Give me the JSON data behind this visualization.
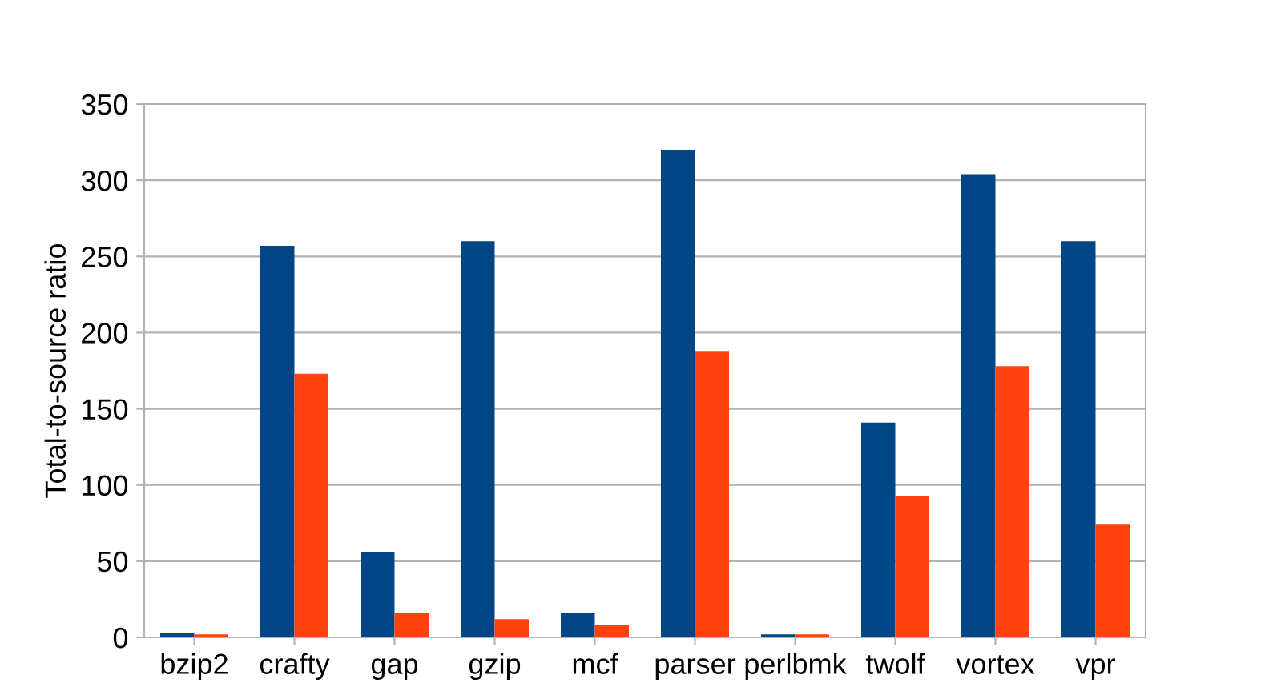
{
  "chart_data": {
    "type": "bar",
    "ylabel": "Total-to-source ratio",
    "categories": [
      "bzip2",
      "crafty",
      "gap",
      "gzip",
      "mcf",
      "parser",
      "perlbmk",
      "twolf",
      "vortex",
      "vpr"
    ],
    "series": [
      {
        "color": "#004586",
        "values": [
          3,
          257,
          56,
          260,
          16,
          320,
          2,
          141,
          304,
          260
        ]
      },
      {
        "color": "#ff420e",
        "values": [
          2,
          173,
          16,
          12,
          8,
          188,
          2,
          93,
          178,
          74
        ]
      }
    ],
    "ylim": [
      0,
      350
    ],
    "yticks": [
      0,
      50,
      100,
      150,
      200,
      250,
      300,
      350
    ],
    "grid": "y"
  }
}
